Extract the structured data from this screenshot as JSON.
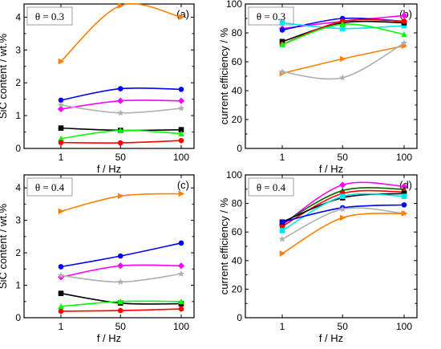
{
  "chart_data": [
    {
      "panel": "(a)",
      "type": "line",
      "annotation": "θ = 0.3",
      "xlabel": "f / Hz",
      "ylabel": "SiC content / wt.%",
      "x": [
        1,
        50,
        100
      ],
      "x_ticks": [
        "1",
        "50",
        "100"
      ],
      "ylim": [
        0,
        4.4
      ],
      "y_ticks": [
        0,
        1,
        2,
        3,
        4
      ],
      "series": [
        {
          "color": "#ff8000",
          "marker": "triangle-right",
          "values": [
            2.65,
            4.35,
            4.0
          ]
        },
        {
          "color": "#0000ff",
          "marker": "circle",
          "values": [
            1.47,
            1.82,
            1.8
          ]
        },
        {
          "color": "#ff00ff",
          "marker": "diamond",
          "values": [
            1.2,
            1.45,
            1.45
          ]
        },
        {
          "color": "#b0b0b0",
          "marker": "star",
          "values": [
            1.32,
            1.08,
            1.22
          ]
        },
        {
          "color": "#000000",
          "marker": "square",
          "values": [
            0.62,
            0.55,
            0.57
          ]
        },
        {
          "color": "#00ff00",
          "marker": "triangle-up",
          "values": [
            0.3,
            0.55,
            0.45
          ]
        },
        {
          "color": "#ff0000",
          "marker": "circle",
          "values": [
            0.18,
            0.17,
            0.24
          ]
        }
      ]
    },
    {
      "panel": "(b)",
      "type": "line",
      "annotation": "θ = 0.3",
      "xlabel": "f / Hz",
      "ylabel": "current efficiency / %",
      "x": [
        1,
        50,
        100
      ],
      "x_ticks": [
        "1",
        "50",
        "100"
      ],
      "ylim": [
        0,
        100
      ],
      "y_ticks": [
        0,
        20,
        40,
        60,
        80,
        100
      ],
      "series": [
        {
          "color": "#ff00ff",
          "marker": "diamond",
          "values": [
            83,
            88,
            92
          ]
        },
        {
          "color": "#0000ff",
          "marker": "circle",
          "values": [
            82,
            90,
            88
          ]
        },
        {
          "color": "#00e5ee",
          "marker": "square",
          "values": [
            87,
            83,
            85
          ]
        },
        {
          "color": "#000000",
          "marker": "square",
          "values": [
            74,
            87,
            87
          ]
        },
        {
          "color": "#ff0000",
          "marker": "circle",
          "values": [
            72,
            88,
            88
          ]
        },
        {
          "color": "#00ff00",
          "marker": "triangle-up",
          "values": [
            72,
            86,
            79
          ]
        },
        {
          "color": "#ff8000",
          "marker": "triangle-right",
          "values": [
            52,
            62,
            71
          ]
        },
        {
          "color": "#b0b0b0",
          "marker": "star",
          "values": [
            53,
            49,
            73
          ]
        }
      ]
    },
    {
      "panel": "(c)",
      "type": "line",
      "annotation": "θ = 0.4",
      "xlabel": "f / Hz",
      "ylabel": "SiC content / wt.%",
      "x": [
        1,
        50,
        100
      ],
      "x_ticks": [
        "1",
        "50",
        "100"
      ],
      "ylim": [
        0,
        4.4
      ],
      "y_ticks": [
        0,
        1,
        2,
        3,
        4
      ],
      "series": [
        {
          "color": "#ff8000",
          "marker": "triangle-right",
          "values": [
            3.28,
            3.75,
            3.82
          ]
        },
        {
          "color": "#0000ff",
          "marker": "circle",
          "values": [
            1.57,
            1.9,
            2.3
          ]
        },
        {
          "color": "#ff00ff",
          "marker": "diamond",
          "values": [
            1.25,
            1.6,
            1.6
          ]
        },
        {
          "color": "#b0b0b0",
          "marker": "star",
          "values": [
            1.3,
            1.1,
            1.35
          ]
        },
        {
          "color": "#000000",
          "marker": "square",
          "values": [
            0.75,
            0.45,
            0.43
          ]
        },
        {
          "color": "#00ff00",
          "marker": "triangle-up",
          "values": [
            0.35,
            0.5,
            0.5
          ]
        },
        {
          "color": "#ff0000",
          "marker": "circle",
          "values": [
            0.2,
            0.22,
            0.27
          ]
        }
      ]
    },
    {
      "panel": "(d)",
      "type": "line",
      "annotation": "θ = 0.4",
      "xlabel": "f / Hz",
      "ylabel": "current efficiency / %",
      "x": [
        1,
        50,
        100
      ],
      "x_ticks": [
        "1",
        "50",
        "100"
      ],
      "ylim": [
        0,
        100
      ],
      "y_ticks": [
        0,
        20,
        40,
        60,
        80,
        100
      ],
      "series": [
        {
          "color": "#ff00ff",
          "marker": "diamond",
          "values": [
            65,
            93,
            92
          ]
        },
        {
          "color": "#006400",
          "marker": "triangle-up",
          "values": [
            66,
            89,
            90
          ]
        },
        {
          "color": "#ff0000",
          "marker": "circle",
          "values": [
            64,
            87,
            88
          ]
        },
        {
          "color": "#000000",
          "marker": "square",
          "values": [
            67,
            84,
            87
          ]
        },
        {
          "color": "#00e5ee",
          "marker": "square",
          "values": [
            61,
            85,
            85
          ]
        },
        {
          "color": "#0000ff",
          "marker": "circle",
          "values": [
            67,
            77,
            79
          ]
        },
        {
          "color": "#b0b0b0",
          "marker": "star",
          "values": [
            55,
            76,
            73
          ]
        },
        {
          "color": "#ff8000",
          "marker": "triangle-right",
          "values": [
            45,
            70,
            73
          ]
        }
      ]
    }
  ]
}
